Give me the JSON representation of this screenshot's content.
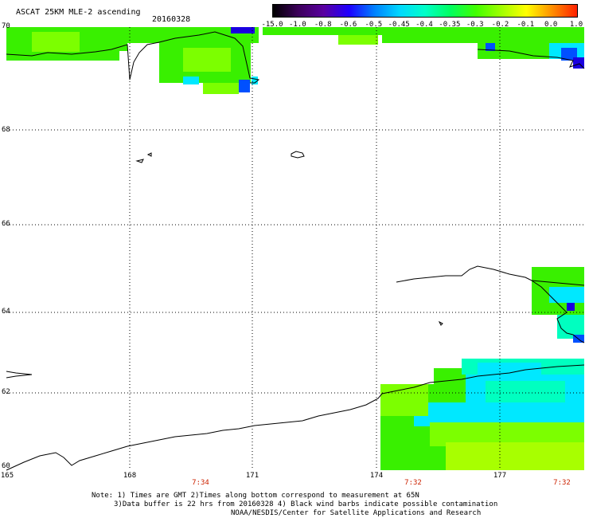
{
  "header": {
    "title": "ASCAT 25KM MLE-2 ascending",
    "date": "20160328"
  },
  "colorbar": {
    "ticks": [
      "-15.0",
      "-1.0",
      "-0.8",
      "-0.6",
      "-0.5",
      "-0.45",
      "-0.4",
      "-0.35",
      "-0.3",
      "-0.2",
      "-0.1",
      "0.0",
      "1.0"
    ],
    "colors": [
      "#000000",
      "#3c005a",
      "#5a00a0",
      "#1e00ff",
      "#0080ff",
      "#00d8ff",
      "#00ffc8",
      "#00ff60",
      "#40ff00",
      "#a0ff00",
      "#ffff00",
      "#ff9000",
      "#ff2000"
    ]
  },
  "map": {
    "lat_labels": [
      "70",
      "68",
      "66",
      "64",
      "62",
      "60"
    ],
    "lon_labels": [
      "165",
      "168",
      "171",
      "174",
      "177"
    ],
    "time_labels": [
      "7:34",
      "7:32",
      "7:32"
    ],
    "data_colors": {
      "green": "#39f000",
      "light_green": "#7cff00",
      "yellow_green": "#a8ff00",
      "cyan": "#00e8ff",
      "aqua": "#00ffc0",
      "blue": "#0050ff",
      "deep_blue": "#1a00e0"
    }
  },
  "notes": {
    "line1": "Note: 1) Times are GMT 2)Times along bottom correspond to measurement at 65N",
    "line2": "3)Data buffer is 22 hrs from 20160328 4) Black wind barbs indicate possible contamination",
    "line3": "NOAA/NESDIS/Center for Satellite Applications and Research"
  }
}
